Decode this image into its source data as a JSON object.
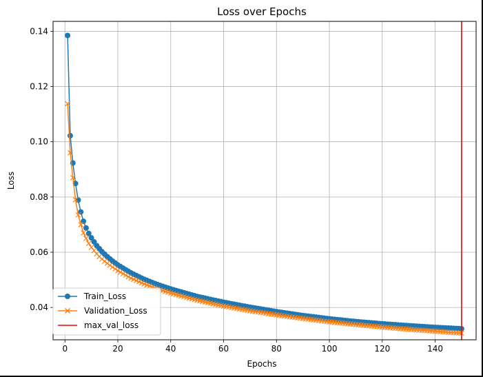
{
  "chart_data": {
    "type": "line",
    "title": "Loss over Epochs",
    "xlabel": "Epochs",
    "ylabel": "Loss",
    "xlim": [
      -4.5,
      155.5
    ],
    "ylim": [
      0.0283,
      0.1436
    ],
    "xticks": [
      "0",
      "20",
      "40",
      "60",
      "80",
      "100",
      "120",
      "140"
    ],
    "yticks": [
      "0.04",
      "0.06",
      "0.08",
      "0.10",
      "0.12",
      "0.14"
    ],
    "grid": true,
    "legend_position": "lower-left",
    "epochs": 150,
    "series": [
      {
        "name": "Train_Loss",
        "color": "#1f77b4",
        "marker": "circle",
        "key_points": [
          [
            1,
            0.1385
          ],
          [
            2,
            0.1022
          ],
          [
            3,
            0.0923
          ],
          [
            4,
            0.0849
          ],
          [
            5,
            0.0789
          ],
          [
            6,
            0.0746
          ],
          [
            7,
            0.0712
          ],
          [
            8,
            0.0688
          ],
          [
            9,
            0.0668
          ],
          [
            10,
            0.0652
          ],
          [
            12,
            0.0624
          ],
          [
            14,
            0.0602
          ],
          [
            16,
            0.0584
          ],
          [
            18,
            0.0568
          ],
          [
            20,
            0.0554
          ],
          [
            25,
            0.0525
          ],
          [
            30,
            0.0502
          ],
          [
            35,
            0.0483
          ],
          [
            40,
            0.0467
          ],
          [
            50,
            0.044
          ],
          [
            60,
            0.0419
          ],
          [
            70,
            0.0401
          ],
          [
            80,
            0.0385
          ],
          [
            90,
            0.0371
          ],
          [
            100,
            0.0359
          ],
          [
            110,
            0.0349
          ],
          [
            120,
            0.0341
          ],
          [
            130,
            0.0334
          ],
          [
            140,
            0.0328
          ],
          [
            150,
            0.0323
          ]
        ]
      },
      {
        "name": "Validation_Loss",
        "color": "#ff7f0e",
        "marker": "x",
        "key_points": [
          [
            1,
            0.1138
          ],
          [
            2,
            0.096
          ],
          [
            3,
            0.087
          ],
          [
            4,
            0.079
          ],
          [
            5,
            0.0735
          ],
          [
            6,
            0.07
          ],
          [
            7,
            0.067
          ],
          [
            8,
            0.065
          ],
          [
            9,
            0.0632
          ],
          [
            10,
            0.0618
          ],
          [
            12,
            0.0594
          ],
          [
            14,
            0.0575
          ],
          [
            16,
            0.056
          ],
          [
            18,
            0.0546
          ],
          [
            20,
            0.0533
          ],
          [
            25,
            0.0506
          ],
          [
            30,
            0.0485
          ],
          [
            35,
            0.0467
          ],
          [
            40,
            0.0452
          ],
          [
            50,
            0.0426
          ],
          [
            60,
            0.0405
          ],
          [
            70,
            0.0388
          ],
          [
            80,
            0.0373
          ],
          [
            90,
            0.036
          ],
          [
            100,
            0.0348
          ],
          [
            110,
            0.0338
          ],
          [
            120,
            0.0329
          ],
          [
            130,
            0.0321
          ],
          [
            140,
            0.0314
          ],
          [
            150,
            0.0307
          ]
        ]
      }
    ],
    "vline": {
      "name": "max_val_loss",
      "x": 150,
      "color": "#ff0000"
    }
  }
}
